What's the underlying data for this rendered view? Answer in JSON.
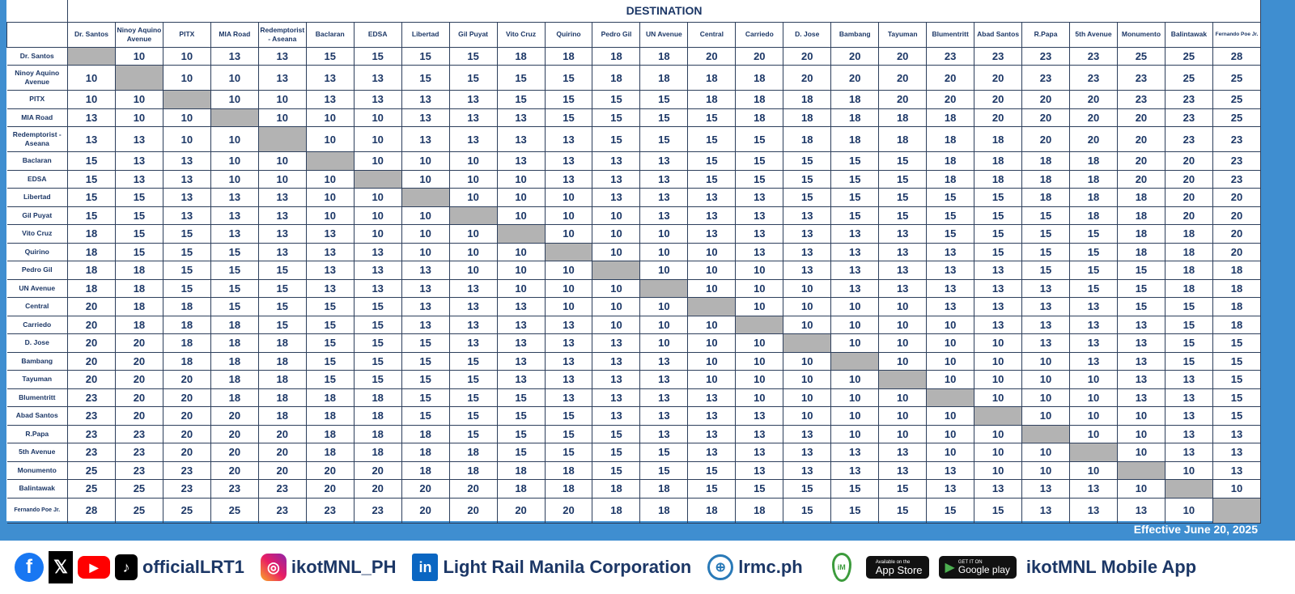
{
  "header": {
    "destination_label": "DESTINATION"
  },
  "stations": [
    "Dr. Santos",
    "Ninoy Aquino Avenue",
    "PITX",
    "MIA Road",
    "Redemptorist - Aseana",
    "Baclaran",
    "EDSA",
    "Libertad",
    "Gil Puyat",
    "Vito Cruz",
    "Quirino",
    "Pedro Gil",
    "UN Avenue",
    "Central",
    "Carriedo",
    "D. Jose",
    "Bambang",
    "Tayuman",
    "Blumentritt",
    "Abad Santos",
    "R.Papa",
    "5th Avenue",
    "Monumento",
    "Balintawak",
    "Fernando Poe Jr."
  ],
  "fares": [
    [
      null,
      10,
      10,
      13,
      13,
      15,
      15,
      15,
      15,
      18,
      18,
      18,
      18,
      20,
      20,
      20,
      20,
      20,
      23,
      23,
      23,
      23,
      25,
      25,
      28
    ],
    [
      10,
      null,
      10,
      10,
      13,
      13,
      13,
      15,
      15,
      15,
      15,
      18,
      18,
      18,
      18,
      20,
      20,
      20,
      20,
      20,
      23,
      23,
      23,
      25,
      25
    ],
    [
      10,
      10,
      null,
      10,
      10,
      13,
      13,
      13,
      13,
      15,
      15,
      15,
      15,
      18,
      18,
      18,
      18,
      20,
      20,
      20,
      20,
      20,
      23,
      23,
      25
    ],
    [
      13,
      10,
      10,
      null,
      10,
      10,
      10,
      13,
      13,
      13,
      15,
      15,
      15,
      15,
      18,
      18,
      18,
      18,
      18,
      20,
      20,
      20,
      20,
      23,
      25
    ],
    [
      13,
      13,
      10,
      10,
      null,
      10,
      10,
      13,
      13,
      13,
      13,
      15,
      15,
      15,
      15,
      18,
      18,
      18,
      18,
      18,
      20,
      20,
      20,
      23,
      23
    ],
    [
      15,
      13,
      13,
      10,
      10,
      null,
      10,
      10,
      10,
      13,
      13,
      13,
      13,
      15,
      15,
      15,
      15,
      15,
      18,
      18,
      18,
      18,
      20,
      20,
      23
    ],
    [
      15,
      13,
      13,
      10,
      10,
      10,
      null,
      10,
      10,
      10,
      13,
      13,
      13,
      15,
      15,
      15,
      15,
      15,
      18,
      18,
      18,
      18,
      20,
      20,
      23
    ],
    [
      15,
      15,
      13,
      13,
      13,
      10,
      10,
      null,
      10,
      10,
      10,
      13,
      13,
      13,
      13,
      15,
      15,
      15,
      15,
      15,
      18,
      18,
      18,
      20,
      20
    ],
    [
      15,
      15,
      13,
      13,
      13,
      10,
      10,
      10,
      null,
      10,
      10,
      10,
      13,
      13,
      13,
      13,
      15,
      15,
      15,
      15,
      15,
      18,
      18,
      20,
      20
    ],
    [
      18,
      15,
      15,
      13,
      13,
      13,
      10,
      10,
      10,
      null,
      10,
      10,
      10,
      13,
      13,
      13,
      13,
      13,
      15,
      15,
      15,
      15,
      18,
      18,
      20
    ],
    [
      18,
      15,
      15,
      15,
      13,
      13,
      13,
      10,
      10,
      10,
      null,
      10,
      10,
      10,
      13,
      13,
      13,
      13,
      13,
      15,
      15,
      15,
      18,
      18,
      20
    ],
    [
      18,
      18,
      15,
      15,
      15,
      13,
      13,
      13,
      10,
      10,
      10,
      null,
      10,
      10,
      10,
      13,
      13,
      13,
      13,
      13,
      15,
      15,
      15,
      18,
      18
    ],
    [
      18,
      18,
      15,
      15,
      15,
      13,
      13,
      13,
      13,
      10,
      10,
      10,
      null,
      10,
      10,
      10,
      13,
      13,
      13,
      13,
      13,
      15,
      15,
      18,
      18
    ],
    [
      20,
      18,
      18,
      15,
      15,
      15,
      15,
      13,
      13,
      13,
      10,
      10,
      10,
      null,
      10,
      10,
      10,
      10,
      13,
      13,
      13,
      13,
      15,
      15,
      18
    ],
    [
      20,
      18,
      18,
      18,
      15,
      15,
      15,
      13,
      13,
      13,
      13,
      10,
      10,
      10,
      null,
      10,
      10,
      10,
      10,
      13,
      13,
      13,
      13,
      15,
      18
    ],
    [
      20,
      20,
      18,
      18,
      18,
      15,
      15,
      15,
      13,
      13,
      13,
      13,
      10,
      10,
      10,
      null,
      10,
      10,
      10,
      10,
      13,
      13,
      13,
      15,
      15
    ],
    [
      20,
      20,
      18,
      18,
      18,
      15,
      15,
      15,
      15,
      13,
      13,
      13,
      13,
      10,
      10,
      10,
      null,
      10,
      10,
      10,
      10,
      13,
      13,
      15,
      15
    ],
    [
      20,
      20,
      20,
      18,
      18,
      15,
      15,
      15,
      15,
      13,
      13,
      13,
      13,
      10,
      10,
      10,
      10,
      null,
      10,
      10,
      10,
      10,
      13,
      13,
      15
    ],
    [
      23,
      20,
      20,
      18,
      18,
      18,
      18,
      15,
      15,
      15,
      13,
      13,
      13,
      13,
      10,
      10,
      10,
      10,
      null,
      10,
      10,
      10,
      13,
      13,
      15
    ],
    [
      23,
      20,
      20,
      20,
      18,
      18,
      18,
      15,
      15,
      15,
      15,
      13,
      13,
      13,
      13,
      10,
      10,
      10,
      10,
      null,
      10,
      10,
      10,
      13,
      15
    ],
    [
      23,
      23,
      20,
      20,
      20,
      18,
      18,
      18,
      15,
      15,
      15,
      15,
      13,
      13,
      13,
      13,
      10,
      10,
      10,
      10,
      null,
      10,
      10,
      13,
      13
    ],
    [
      23,
      23,
      20,
      20,
      20,
      18,
      18,
      18,
      18,
      15,
      15,
      15,
      15,
      13,
      13,
      13,
      13,
      13,
      10,
      10,
      10,
      null,
      10,
      13,
      13
    ],
    [
      25,
      23,
      23,
      20,
      20,
      20,
      20,
      18,
      18,
      18,
      18,
      15,
      15,
      15,
      13,
      13,
      13,
      13,
      13,
      10,
      10,
      10,
      null,
      10,
      13
    ],
    [
      25,
      25,
      23,
      23,
      23,
      20,
      20,
      20,
      20,
      18,
      18,
      18,
      18,
      15,
      15,
      15,
      15,
      15,
      13,
      13,
      13,
      13,
      10,
      null,
      10
    ],
    [
      28,
      25,
      25,
      25,
      23,
      23,
      23,
      20,
      20,
      20,
      20,
      18,
      18,
      18,
      18,
      15,
      15,
      15,
      15,
      15,
      13,
      13,
      13,
      10,
      null
    ]
  ],
  "colors": {
    "frame_blue": "#3f8ed0",
    "text_navy": "#1c3766",
    "diagonal_gray": "#b3b3b3"
  },
  "effective": "Effective June 20, 2025",
  "footer": {
    "social_handle": "officialLRT1",
    "instagram_handle": "ikotMNL_PH",
    "linkedin_name": "Light Rail Manila Corporation",
    "website": "lrmc.ph",
    "app_store_label": "App Store",
    "app_store_small": "Available on the",
    "google_play_label": "Google play",
    "google_play_small": "GET IT ON",
    "app_name": "ikotMNL Mobile App",
    "icons": [
      "facebook-icon",
      "x-icon",
      "youtube-icon",
      "tiktok-icon",
      "instagram-icon",
      "linkedin-icon",
      "globe-icon",
      "ikotmnl-pin-icon",
      "apple-icon",
      "google-play-icon"
    ]
  }
}
